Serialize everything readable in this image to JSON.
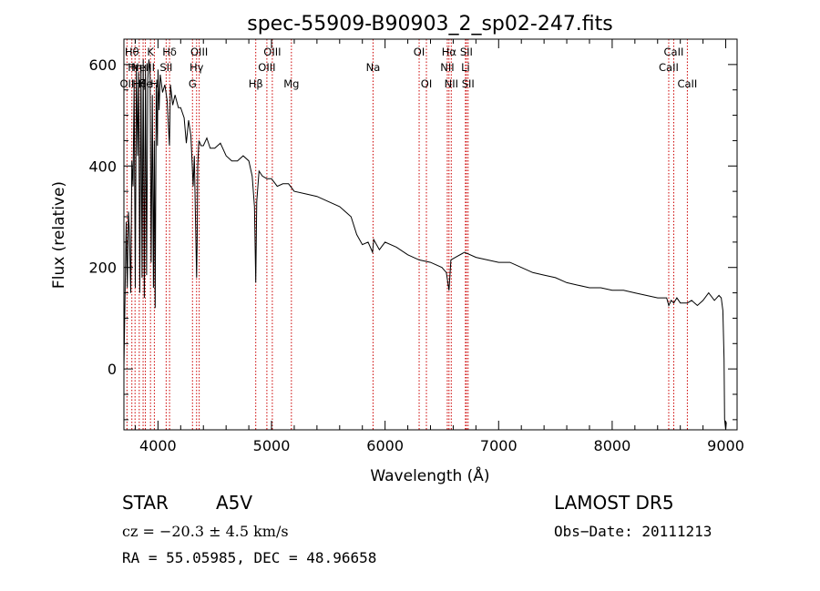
{
  "chart_data": {
    "type": "line",
    "title": "spec-55909-B90903_2_sp02-247.fits",
    "xlabel": "Wavelength (Å)",
    "ylabel": "Flux (relative)",
    "xlim": [
      3700,
      9100
    ],
    "ylim": [
      -120,
      650
    ],
    "xticks": [
      4000,
      5000,
      6000,
      7000,
      8000,
      9000
    ],
    "yticks": [
      0,
      200,
      400,
      600
    ],
    "grid": false,
    "series": [
      {
        "color": "#000000",
        "x": [
          3700,
          3710,
          3720,
          3730,
          3740,
          3750,
          3760,
          3770,
          3780,
          3790,
          3800,
          3810,
          3820,
          3830,
          3840,
          3850,
          3860,
          3870,
          3880,
          3890,
          3900,
          3910,
          3920,
          3930,
          3940,
          3950,
          3960,
          3968,
          3975,
          3985,
          3995,
          4000,
          4010,
          4020,
          4040,
          4060,
          4080,
          4101,
          4110,
          4130,
          4150,
          4180,
          4200,
          4230,
          4250,
          4270,
          4290,
          4310,
          4320,
          4330,
          4340,
          4345,
          4350,
          4360,
          4380,
          4400,
          4430,
          4460,
          4500,
          4550,
          4600,
          4650,
          4700,
          4750,
          4800,
          4830,
          4850,
          4861,
          4870,
          4890,
          4920,
          4960,
          5000,
          5050,
          5100,
          5150,
          5200,
          5300,
          5400,
          5500,
          5600,
          5700,
          5750,
          5800,
          5850,
          5890,
          5900,
          5950,
          6000,
          6100,
          6200,
          6300,
          6400,
          6500,
          6540,
          6563,
          6580,
          6620,
          6700,
          6800,
          6900,
          7000,
          7100,
          7200,
          7300,
          7400,
          7500,
          7600,
          7700,
          7800,
          7900,
          8000,
          8100,
          8200,
          8300,
          8400,
          8480,
          8498,
          8520,
          8542,
          8570,
          8600,
          8662,
          8700,
          8750,
          8800,
          8850,
          8900,
          8940,
          8960,
          8975,
          8985,
          8990,
          9000,
          9005
        ],
        "y": [
          0,
          140,
          290,
          160,
          310,
          260,
          150,
          410,
          360,
          560,
          160,
          600,
          420,
          585,
          150,
          600,
          180,
          610,
          140,
          600,
          185,
          570,
          610,
          580,
          210,
          540,
          160,
          450,
          120,
          560,
          440,
          590,
          510,
          580,
          545,
          560,
          530,
          440,
          560,
          520,
          540,
          515,
          515,
          495,
          445,
          490,
          460,
          360,
          420,
          300,
          180,
          250,
          400,
          450,
          440,
          440,
          455,
          435,
          435,
          445,
          420,
          410,
          410,
          420,
          410,
          380,
          320,
          170,
          330,
          390,
          380,
          375,
          375,
          360,
          365,
          365,
          350,
          345,
          340,
          330,
          320,
          300,
          265,
          245,
          250,
          230,
          255,
          235,
          250,
          240,
          225,
          215,
          210,
          200,
          190,
          155,
          215,
          220,
          230,
          220,
          215,
          210,
          210,
          200,
          190,
          185,
          180,
          170,
          165,
          160,
          160,
          155,
          155,
          150,
          145,
          140,
          140,
          125,
          135,
          130,
          140,
          130,
          130,
          135,
          125,
          135,
          150,
          135,
          145,
          140,
          115,
          20,
          -100,
          -120,
          -105
        ]
      }
    ],
    "lines": [
      {
        "w": 3727,
        "label": "OII",
        "row": 3
      },
      {
        "w": 3770,
        "label": "Hθ",
        "row": 1
      },
      {
        "w": 3798,
        "label": "Hη",
        "row": 2
      },
      {
        "w": 3835,
        "label": "Hζ",
        "row": 3
      },
      {
        "w": 3869,
        "label": "NeIII",
        "row": 2
      },
      {
        "w": 3889,
        "label": "He",
        "row": 3
      },
      {
        "w": 3934,
        "label": "K",
        "row": 1
      },
      {
        "w": 3968,
        "label": "H",
        "row": 3
      },
      {
        "w": 4072,
        "label": "SII",
        "row": 2
      },
      {
        "w": 4102,
        "label": "Hδ",
        "row": 1
      },
      {
        "w": 4304,
        "label": "G",
        "row": 3
      },
      {
        "w": 4340,
        "label": "Hγ",
        "row": 2
      },
      {
        "w": 4363,
        "label": "OIII",
        "row": 1
      },
      {
        "w": 4861,
        "label": "Hβ",
        "row": 3
      },
      {
        "w": 4959,
        "label": "OIII",
        "row": 2
      },
      {
        "w": 5007,
        "label": "OIII",
        "row": 1
      },
      {
        "w": 5175,
        "label": "Mg",
        "row": 3
      },
      {
        "w": 5894,
        "label": "Na",
        "row": 2
      },
      {
        "w": 6300,
        "label": "OI",
        "row": 1
      },
      {
        "w": 6364,
        "label": "OI",
        "row": 3
      },
      {
        "w": 6548,
        "label": "NII",
        "row": 2
      },
      {
        "w": 6563,
        "label": "Hα",
        "row": 1
      },
      {
        "w": 6583,
        "label": "NII",
        "row": 3
      },
      {
        "w": 6708,
        "label": "Li",
        "row": 2
      },
      {
        "w": 6716,
        "label": "SII",
        "row": 1
      },
      {
        "w": 6731,
        "label": "SII",
        "row": 3
      },
      {
        "w": 8498,
        "label": "CaII",
        "row": 2
      },
      {
        "w": 8542,
        "label": "CaII",
        "row": 1
      },
      {
        "w": 8662,
        "label": "CaII",
        "row": 3
      }
    ]
  },
  "info": {
    "class": "STAR",
    "subclass": "A5V",
    "survey": "LAMOST DR5",
    "cz": "cz = −20.3 ± 4.5 km/s",
    "obs_date": "Obs−Date: 20111213",
    "coords": "RA =  55.05985, DEC =  48.96658"
  },
  "colors": {
    "line": "#000000",
    "marker": "#cc0000"
  }
}
